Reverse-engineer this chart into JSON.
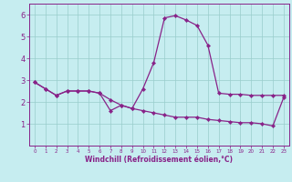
{
  "xlabel": "Windchill (Refroidissement éolien,°C)",
  "background_color": "#c6edf0",
  "line_color": "#882288",
  "grid_color": "#99cccc",
  "x": [
    0,
    1,
    2,
    3,
    4,
    5,
    6,
    7,
    8,
    9,
    10,
    11,
    12,
    13,
    14,
    15,
    16,
    17,
    18,
    19,
    20,
    21,
    22,
    23
  ],
  "series1": [
    2.9,
    2.6,
    2.3,
    2.5,
    2.5,
    2.5,
    2.4,
    1.6,
    1.85,
    1.7,
    2.6,
    3.8,
    5.85,
    5.95,
    5.75,
    5.5,
    4.6,
    2.4,
    2.35,
    2.35,
    2.3,
    2.3,
    2.3,
    2.3
  ],
  "series2": [
    2.9,
    2.6,
    2.3,
    2.5,
    2.5,
    2.5,
    2.4,
    2.1,
    1.85,
    1.7,
    1.6,
    1.5,
    1.4,
    1.3,
    1.3,
    1.3,
    1.2,
    1.15,
    1.1,
    1.05,
    1.05,
    1.0,
    0.9,
    2.2
  ],
  "ylim": [
    0,
    6.5
  ],
  "xlim": [
    -0.5,
    23.5
  ],
  "yticks": [
    1,
    2,
    3,
    4,
    5,
    6
  ],
  "xticks": [
    0,
    1,
    2,
    3,
    4,
    5,
    6,
    7,
    8,
    9,
    10,
    11,
    12,
    13,
    14,
    15,
    16,
    17,
    18,
    19,
    20,
    21,
    22,
    23
  ],
  "xlabel_fontsize": 5.5,
  "ytick_fontsize": 6.0,
  "xtick_fontsize": 4.0,
  "linewidth": 0.9,
  "markersize": 2.2
}
